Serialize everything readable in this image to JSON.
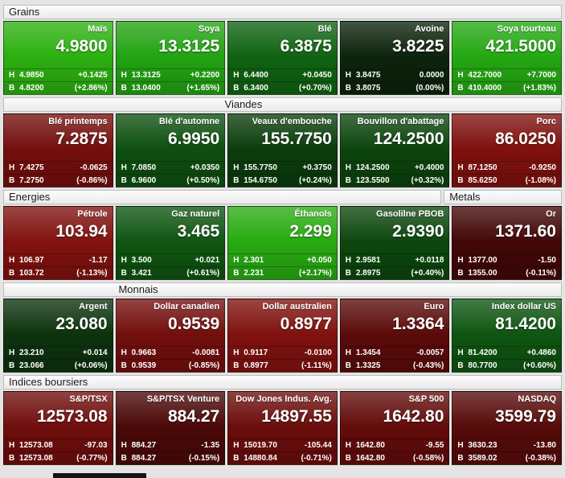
{
  "labels": {
    "high_prefix": "H",
    "low_prefix": "B"
  },
  "sections": [
    {
      "id": "grains",
      "headers": [
        {
          "label": "Grains",
          "cols": 5
        }
      ],
      "tiles": [
        {
          "name": "Maïs",
          "value": "4.9800",
          "high": "4.9850",
          "change": "+0.1425",
          "low": "4.8200",
          "pct": "(+2.86%)",
          "color": "#2cb011"
        },
        {
          "name": "Soya",
          "value": "13.3125",
          "high": "13.3125",
          "change": "+0.2200",
          "low": "13.0400",
          "pct": "(+1.65%)",
          "color": "#23a313"
        },
        {
          "name": "Blé",
          "value": "6.3875",
          "high": "6.4400",
          "change": "+0.0450",
          "low": "6.3400",
          "pct": "(+0.70%)",
          "color": "#106312"
        },
        {
          "name": "Avoine",
          "value": "3.8225",
          "high": "3.8475",
          "change": "0.0000",
          "low": "3.8075",
          "pct": "(0.00%)",
          "color": "#0c230c"
        },
        {
          "name": "Soya tourteau",
          "value": "421.5000",
          "high": "422.7000",
          "change": "+7.7000",
          "low": "410.4000",
          "pct": "(+1.83%)",
          "color": "#25a813"
        }
      ]
    },
    {
      "id": "viandes",
      "headers": [
        {
          "label": "Viandes",
          "cols": 5
        }
      ],
      "tiles": [
        {
          "name": "Blé printemps",
          "value": "7.2875",
          "high": "7.4275",
          "change": "-0.0625",
          "low": "7.2750",
          "pct": "(-0.86%)",
          "color": "#740f0d"
        },
        {
          "name": "Blé d'automne",
          "value": "6.9950",
          "high": "7.0850",
          "change": "+0.0350",
          "low": "6.9600",
          "pct": "(+0.50%)",
          "color": "#0e4f10"
        },
        {
          "name": "Veaux d'embouche",
          "value": "155.7750",
          "high": "155.7750",
          "change": "+0.3750",
          "low": "154.6750",
          "pct": "(+0.24%)",
          "color": "#0b3d0c"
        },
        {
          "name": "Bouvillon d'abattage",
          "value": "124.2500",
          "high": "124.2500",
          "change": "+0.4000",
          "low": "123.5500",
          "pct": "(+0.32%)",
          "color": "#0c440d"
        },
        {
          "name": "Porc",
          "value": "86.0250",
          "high": "87.1250",
          "change": "-0.9250",
          "low": "85.6250",
          "pct": "(-1.08%)",
          "color": "#7f110e"
        }
      ]
    },
    {
      "id": "energies",
      "headers": [
        {
          "label": "Energies",
          "cols": 4
        },
        {
          "label": "Metals",
          "cols": 1
        }
      ],
      "tiles": [
        {
          "name": "Pétrole",
          "value": "103.94",
          "high": "106.97",
          "change": "-1.17",
          "low": "103.72",
          "pct": "(-1.13%)",
          "color": "#81120f"
        },
        {
          "name": "Gaz naturel",
          "value": "3.465",
          "high": "3.500",
          "change": "+0.021",
          "low": "3.421",
          "pct": "(+0.61%)",
          "color": "#0f5511"
        },
        {
          "name": "Éthanols",
          "value": "2.299",
          "high": "2.301",
          "change": "+0.050",
          "low": "2.231",
          "pct": "(+2.17%)",
          "color": "#28ab12"
        },
        {
          "name": "Gasolilne PBOB",
          "value": "2.9390",
          "high": "2.9581",
          "change": "+0.0118",
          "low": "2.8975",
          "pct": "(+0.40%)",
          "color": "#0c470d"
        },
        {
          "name": "Or",
          "value": "1371.60",
          "high": "1377.00",
          "change": "-1.50",
          "low": "1355.00",
          "pct": "(-0.11%)",
          "color": "#420807"
        }
      ]
    },
    {
      "id": "monnais",
      "headers": [
        {
          "label": "Monnais",
          "cols": 5
        }
      ],
      "tiles": [
        {
          "name": "Argent",
          "value": "23.080",
          "high": "23.210",
          "change": "+0.014",
          "low": "23.066",
          "pct": "(+0.06%)",
          "color": "#0d330e"
        },
        {
          "name": "Dollar canadien",
          "value": "0.9539",
          "high": "0.9663",
          "change": "-0.0081",
          "low": "0.9539",
          "pct": "(-0.85%)",
          "color": "#730f0d"
        },
        {
          "name": "Dollar australien",
          "value": "0.8977",
          "high": "0.9117",
          "change": "-0.0100",
          "low": "0.8977",
          "pct": "(-1.11%)",
          "color": "#80120f"
        },
        {
          "name": "Euro",
          "value": "1.3364",
          "high": "1.3454",
          "change": "-0.0057",
          "low": "1.3325",
          "pct": "(-0.43%)",
          "color": "#5a0b09"
        },
        {
          "name": "Index dollar US",
          "value": "81.4200",
          "high": "81.4200",
          "change": "+0.4860",
          "low": "80.7700",
          "pct": "(+0.60%)",
          "color": "#0f5511"
        }
      ]
    },
    {
      "id": "indices",
      "headers": [
        {
          "label": "Indices boursiers",
          "cols": 5
        }
      ],
      "tiles": [
        {
          "name": "S&P/TSX",
          "value": "12573.08",
          "high": "12573.08",
          "change": "-97.03",
          "low": "12573.08",
          "pct": "(-0.77%)",
          "color": "#6f0e0c"
        },
        {
          "name": "S&P/TSX Venture",
          "value": "884.27",
          "high": "884.27",
          "change": "-1.35",
          "low": "884.27",
          "pct": "(-0.15%)",
          "color": "#4a0908"
        },
        {
          "name": "Dow Jones Indus. Avg.",
          "value": "14897.55",
          "high": "15019.70",
          "change": "-105.44",
          "low": "14880.84",
          "pct": "(-0.71%)",
          "color": "#6b0e0c"
        },
        {
          "name": "S&P 500",
          "value": "1642.80",
          "high": "1642.80",
          "change": "-9.55",
          "low": "1642.80",
          "pct": "(-0.58%)",
          "color": "#620c0a"
        },
        {
          "name": "NASDAQ",
          "value": "3599.79",
          "high": "3630.23",
          "change": "-13.80",
          "low": "3589.02",
          "pct": "(-0.38%)",
          "color": "#560b09"
        }
      ]
    }
  ]
}
